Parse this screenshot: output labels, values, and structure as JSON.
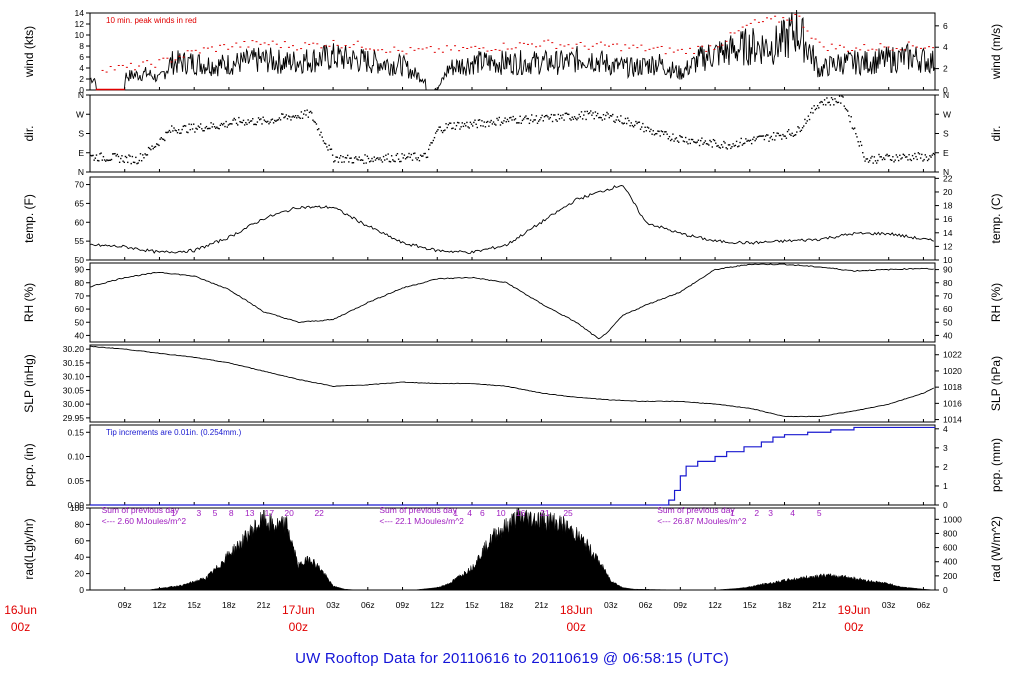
{
  "footer_title": "UW Rooftop Data for 20110616  to  20110619 @ 06:58:15  (UTC)",
  "colors": {
    "trace": "#000000",
    "peak": "#e00000",
    "pcp": "#1a1ad0",
    "sum": "#a020c0",
    "day": "#e00000",
    "footer": "#1414d8"
  },
  "chart_data": {
    "type": "line",
    "x_range_hours": [
      -6,
      42
    ],
    "x_ticks": [
      {
        "h": -3,
        "label": "09z"
      },
      {
        "h": 0,
        "label": "12z"
      },
      {
        "h": 3,
        "label": "15z"
      },
      {
        "h": 6,
        "label": "18z"
      },
      {
        "h": 9,
        "label": "21z"
      },
      {
        "h": 15,
        "label": "03z"
      },
      {
        "h": 18,
        "label": "06z"
      },
      {
        "h": 21,
        "label": "09z"
      },
      {
        "h": 24,
        "label": "12z"
      },
      {
        "h": 27,
        "label": "15z"
      },
      {
        "h": 30,
        "label": "18z"
      },
      {
        "h": 33,
        "label": "21z"
      },
      {
        "h": 39,
        "label": "03z"
      },
      {
        "h": 42,
        "label": "06z"
      },
      {
        "h": 45,
        "label": "09z"
      },
      {
        "h": 48,
        "label": "12z"
      },
      {
        "h": 51,
        "label": "15z"
      },
      {
        "h": 54,
        "label": "18z"
      },
      {
        "h": 57,
        "label": "21z"
      },
      {
        "h": 63,
        "label": "03z"
      },
      {
        "h": 66,
        "label": "06z"
      }
    ],
    "day_labels": [
      {
        "h": -12,
        "day": "16Jun",
        "hour": "00z"
      },
      {
        "h": 12,
        "day": "17Jun",
        "hour": "00z"
      },
      {
        "h": 36,
        "day": "18Jun",
        "hour": "00z"
      },
      {
        "h": 60,
        "day": "19Jun",
        "hour": "00z"
      }
    ],
    "panels": [
      {
        "key": "wind",
        "ylabel": "wind (kts)",
        "ylabel_right": "wind (m/s)",
        "ylim": [
          0,
          14
        ],
        "yticks": [
          "0",
          "2",
          "4",
          "6",
          "8",
          "10",
          "12",
          "14"
        ],
        "right_ylim": [
          0,
          7.2
        ],
        "right_ticks": [
          "0",
          "2",
          "4",
          "6"
        ],
        "annotation": "10 min. peak winds in red",
        "series": [
          {
            "name": "wind",
            "hours": [
              -6,
              -3,
              -1,
              0,
              1,
              3,
              5,
              7,
              9,
              11,
              13,
              15,
              17,
              19,
              21,
              22,
              23,
              24,
              25,
              27,
              29,
              31,
              33,
              35,
              37,
              39,
              41,
              43,
              45,
              47,
              49,
              51,
              53,
              54,
              55,
              56,
              57,
              58,
              59,
              61,
              63,
              65,
              67
            ],
            "values": [
              2,
              2.5,
              3,
              2,
              5,
              5,
              4.5,
              5,
              5.5,
              5,
              5.5,
              6,
              5.5,
              5,
              4.5,
              3,
              2,
              0,
              4,
              5,
              5,
              5,
              5,
              5,
              6,
              4.5,
              4,
              5,
              3,
              6,
              7,
              8,
              8,
              9,
              11,
              8,
              3.5,
              4.5,
              5,
              5,
              5.5,
              6,
              5
            ]
          },
          {
            "name": "peak",
            "hours": [
              -3,
              0,
              3,
              6,
              9,
              12,
              15,
              18,
              21,
              27,
              30,
              33,
              36,
              39,
              42,
              45,
              48,
              51,
              54,
              55,
              57,
              60,
              63,
              66
            ],
            "values": [
              4,
              5,
              7,
              8,
              8.5,
              8,
              8.5,
              8,
              7,
              7.5,
              8,
              8.5,
              8,
              8,
              7.5,
              7,
              8,
              12,
              13,
              13.5,
              8,
              7.5,
              8,
              8
            ]
          }
        ]
      },
      {
        "key": "dir",
        "ylabel": "dir.",
        "ylabel_right": "dir.",
        "ylim": [
          0,
          360
        ],
        "yticks": [
          "N",
          "E",
          "S",
          "W",
          "N"
        ],
        "right_ylim": [
          0,
          360
        ],
        "right_ticks": [
          "N",
          "E",
          "S",
          "W",
          "N"
        ],
        "series": [
          {
            "name": "direction",
            "hours": [
              -6,
              -4,
              -2,
              -1,
              0,
              1,
              3,
              5,
              7,
              9,
              11,
              13,
              15,
              17,
              19,
              21,
              23,
              24,
              25,
              27,
              29,
              31,
              33,
              35,
              37,
              39,
              41,
              43,
              45,
              47,
              49,
              51,
              53,
              55,
              57,
              59,
              61,
              63,
              65,
              67
            ],
            "values": [
              75,
              70,
              60,
              100,
              150,
              200,
              210,
              220,
              240,
              240,
              260,
              275,
              70,
              60,
              70,
              70,
              75,
              200,
              220,
              225,
              240,
              250,
              250,
              260,
              270,
              260,
              230,
              180,
              160,
              140,
              130,
              150,
              170,
              190,
              330,
              340,
              60,
              70,
              75,
              70
            ]
          }
        ]
      },
      {
        "key": "temp",
        "ylabel": "temp. (F)",
        "ylabel_right": "temp. (C)",
        "ylim": [
          50,
          72
        ],
        "yticks": [
          "50",
          "55",
          "60",
          "65",
          "70"
        ],
        "right_ylim": [
          10,
          22.2
        ],
        "right_ticks": [
          "10",
          "12",
          "14",
          "16",
          "18",
          "20",
          "22"
        ],
        "series": [
          {
            "name": "temperature",
            "hours": [
              -6,
              -3,
              0,
              3,
              6,
              9,
              12,
              15,
              18,
              21,
              24,
              27,
              30,
              33,
              36,
              38,
              40,
              42,
              45,
              48,
              51,
              54,
              57,
              60,
              63,
              66,
              67
            ],
            "values": [
              54,
              53.5,
              52,
              52.5,
              56,
              61,
              64,
              64,
              59,
              54.5,
              52.5,
              52,
              54,
              60,
              66,
              68,
              70,
              60,
              57,
              55,
              54.5,
              55,
              55.5,
              57,
              57,
              55.5,
              55
            ]
          }
        ]
      },
      {
        "key": "rh",
        "ylabel": "RH (%)",
        "ylabel_right": "RH (%)",
        "ylim": [
          35,
          95
        ],
        "yticks": [
          "40",
          "50",
          "60",
          "70",
          "80",
          "90"
        ],
        "right_ylim": [
          35,
          95
        ],
        "right_ticks": [
          "40",
          "50",
          "60",
          "70",
          "80",
          "90"
        ],
        "series": [
          {
            "name": "relative_humidity",
            "hours": [
              -6,
              -3,
              0,
              3,
              6,
              9,
              12,
              15,
              18,
              21,
              24,
              27,
              30,
              33,
              36,
              38,
              39,
              40,
              42,
              45,
              48,
              51,
              54,
              57,
              60,
              63,
              66,
              67
            ],
            "values": [
              77,
              84,
              88,
              85,
              75,
              58,
              50,
              52,
              65,
              76,
              83,
              84,
              80,
              64,
              50,
              37,
              45,
              55,
              63,
              73,
              90,
              94,
              94,
              92,
              89,
              90,
              91,
              90
            ]
          }
        ]
      },
      {
        "key": "slp",
        "ylabel": "SLP (inHg)",
        "ylabel_right": "SLP (hPa)",
        "ylim": [
          29.935,
          30.215
        ],
        "yticks": [
          "29.95",
          "30.00",
          "30.05",
          "30.10",
          "30.15",
          "30.20"
        ],
        "right_ylim": [
          1013.7,
          1023.2
        ],
        "right_ticks": [
          "1014",
          "1016",
          "1018",
          "1020",
          "1022"
        ],
        "series": [
          {
            "name": "sea_level_pressure",
            "hours": [
              -6,
              -3,
              0,
              3,
              6,
              9,
              12,
              15,
              18,
              21,
              24,
              27,
              30,
              33,
              36,
              39,
              42,
              45,
              48,
              51,
              54,
              57,
              60,
              63,
              66,
              67
            ],
            "values": [
              30.21,
              30.2,
              30.185,
              30.17,
              30.15,
              30.12,
              30.09,
              30.065,
              30.07,
              30.08,
              30.075,
              30.075,
              30.065,
              30.04,
              30.025,
              30.015,
              30.01,
              30.01,
              30,
              29.985,
              29.955,
              29.955,
              29.975,
              30,
              30.04,
              30.06
            ]
          }
        ]
      },
      {
        "key": "pcp",
        "ylabel": "pcp. (in)",
        "ylabel_right": "pcp. (mm)",
        "ylim": [
          0,
          0.165
        ],
        "yticks": [
          "0.00",
          "0.05",
          "0.10",
          "0.15"
        ],
        "right_ylim": [
          0,
          4.2
        ],
        "right_ticks": [
          "0",
          "1",
          "2",
          "3",
          "4"
        ],
        "annotation": "Tip increments are 0.01in. (0.254mm.)",
        "series": [
          {
            "name": "precipitation",
            "hours": [
              -6,
              43.5,
              44,
              44.5,
              45,
              45.5,
              46.5,
              48,
              49,
              50.5,
              52,
              53,
              54,
              56,
              58,
              60,
              62,
              64,
              66,
              67
            ],
            "values": [
              0,
              0,
              0.01,
              0.03,
              0.06,
              0.08,
              0.09,
              0.1,
              0.11,
              0.12,
              0.13,
              0.14,
              0.145,
              0.15,
              0.155,
              0.16,
              0.16,
              0.16,
              0.16,
              0.16
            ]
          }
        ]
      },
      {
        "key": "rad",
        "ylabel": "rad(Lgly/hr)",
        "ylabel_right": "rad (W/m^2)",
        "ylim": [
          0,
          100
        ],
        "yticks": [
          "0",
          "20",
          "40",
          "60",
          "80",
          "100"
        ],
        "right_ylim": [
          0,
          1160
        ],
        "right_ticks": [
          "0",
          "200",
          "400",
          "600",
          "800",
          "1000"
        ],
        "series": [
          {
            "name": "radiation",
            "hours": [
              -6,
              -1,
              0,
              2,
              4,
              5,
              6,
              7,
              8,
              9,
              10,
              11,
              12,
              13,
              14,
              15,
              16,
              17,
              20,
              22,
              24,
              25,
              26,
              27,
              28,
              29,
              30,
              31,
              32,
              33,
              34,
              35,
              36,
              37,
              38,
              39,
              40,
              41,
              45,
              47,
              48,
              50,
              51,
              52,
              53,
              54,
              55,
              56,
              57,
              58,
              59,
              60,
              61,
              62,
              63,
              64,
              66,
              67
            ],
            "values": [
              0,
              0,
              2,
              6,
              15,
              28,
              45,
              58,
              75,
              88,
              80,
              82,
              30,
              40,
              25,
              5,
              1,
              0,
              0,
              0,
              3,
              8,
              18,
              28,
              50,
              70,
              80,
              92,
              90,
              88,
              86,
              80,
              70,
              55,
              35,
              12,
              3,
              1,
              0,
              0,
              0,
              2,
              4,
              7,
              9,
              12,
              14,
              16,
              18,
              18,
              17,
              15,
              12,
              10,
              8,
              4,
              1,
              0
            ]
          }
        ],
        "sum_labels": [
          {
            "h": -5,
            "line1": "Sum of previous day",
            "line2": "<--- 2.60 MJoules/m^2"
          },
          {
            "h": 19,
            "line1": "Sum of previous day",
            "line2": "<--- 22.1 MJoules/m^2"
          },
          {
            "h": 43,
            "line1": "Sum of previous day",
            "line2": "<--- 26.87 MJoules/m^2"
          }
        ],
        "hour_marks": [
          {
            "h": 1.2,
            "t": "1"
          },
          {
            "h": 3.4,
            "t": "3"
          },
          {
            "h": 4.8,
            "t": "5"
          },
          {
            "h": 6.2,
            "t": "8"
          },
          {
            "h": 7.8,
            "t": "13"
          },
          {
            "h": 9.5,
            "t": "17"
          },
          {
            "h": 11.2,
            "t": "20"
          },
          {
            "h": 13.8,
            "t": "22"
          },
          {
            "h": 25.6,
            "t": "1"
          },
          {
            "h": 26.8,
            "t": "4"
          },
          {
            "h": 27.9,
            "t": "6"
          },
          {
            "h": 29.5,
            "t": "10"
          },
          {
            "h": 31.2,
            "t": "16"
          },
          {
            "h": 33.3,
            "t": "21"
          },
          {
            "h": 35.3,
            "t": "25"
          },
          {
            "h": 49.5,
            "t": "1"
          },
          {
            "h": 51.6,
            "t": "2"
          },
          {
            "h": 52.8,
            "t": "3"
          },
          {
            "h": 54.7,
            "t": "4"
          },
          {
            "h": 57,
            "t": "5"
          }
        ]
      }
    ]
  }
}
